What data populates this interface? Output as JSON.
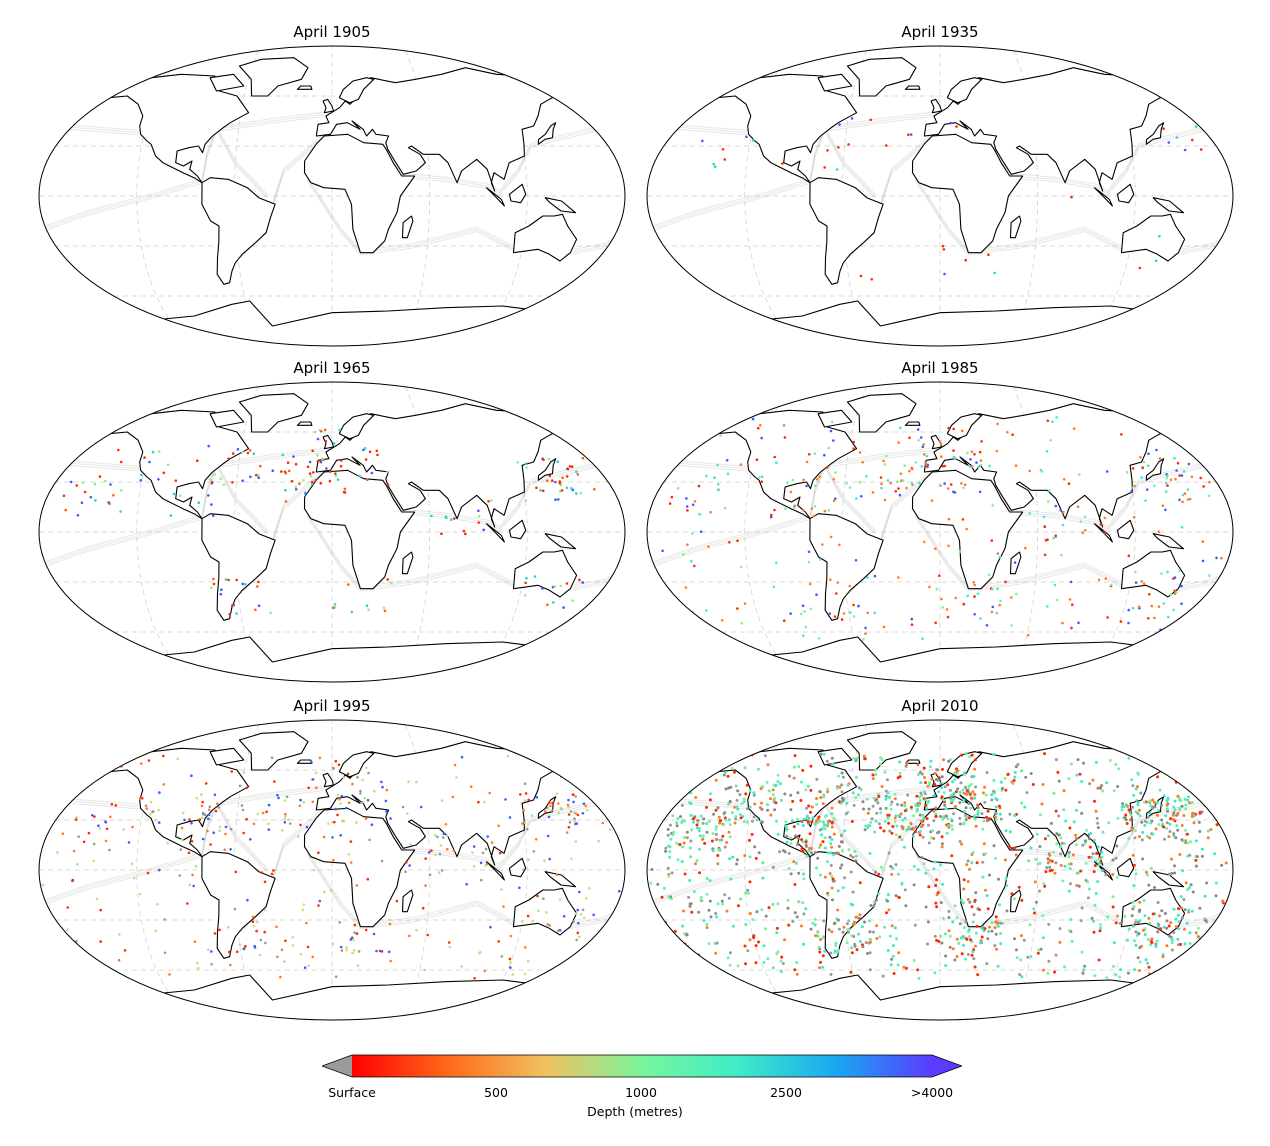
{
  "panels": [
    {
      "title": "April 1905",
      "density": 0,
      "palette": [
        "#ff2a00"
      ]
    },
    {
      "title": "April 1935",
      "density": 40,
      "palette": [
        "#ff2a00",
        "#ff2a00",
        "#3c5cff",
        "#2ad4c8"
      ]
    },
    {
      "title": "April 1965",
      "density": 220,
      "palette": [
        "#ff2a00",
        "#ff2a00",
        "#ff5a10",
        "#8ff08a",
        "#3c5cff",
        "#2ad4c8"
      ]
    },
    {
      "title": "April 1985",
      "density": 420,
      "palette": [
        "#ff7a28",
        "#ff7a28",
        "#ff2a00",
        "#7cf0a0",
        "#3c5cff",
        "#40e8c8"
      ]
    },
    {
      "title": "April 1995",
      "density": 480,
      "palette": [
        "#b8e08a",
        "#c8e070",
        "#ff7a28",
        "#999999",
        "#3c5cff",
        "#ff2a00"
      ]
    },
    {
      "title": "April 2010",
      "density": 1700,
      "palette": [
        "#40e8c8",
        "#5cf0b0",
        "#999999",
        "#888888",
        "#7cf0a0",
        "#ff7a28",
        "#ff2a00"
      ]
    }
  ],
  "colorbar": {
    "label": "Depth (metres)",
    "ticks": [
      "Surface",
      "500",
      "1000",
      "2500",
      ">4000"
    ],
    "under_color": "#9a9a9a",
    "over_color": "#5a3cff",
    "stops": [
      "#ff0000",
      "#ff6a1a",
      "#f0c060",
      "#7af59a",
      "#40ebc8",
      "#1aa8f0",
      "#5a3cff"
    ]
  },
  "colors": {
    "track_gray": "#9a9a9a",
    "coast": "#000000",
    "grid": "#cccccc"
  }
}
